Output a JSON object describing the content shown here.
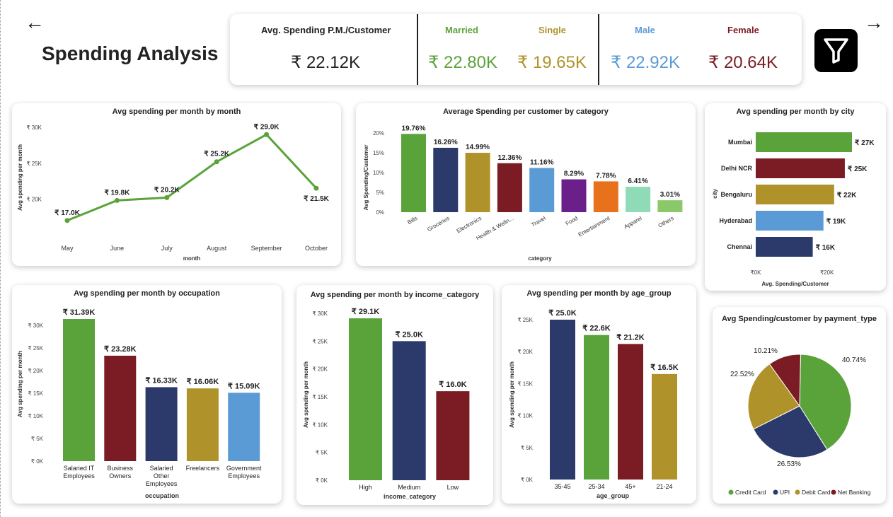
{
  "header": {
    "title": "Spending Analysis",
    "back_icon": "left-arrow-icon",
    "next_icon": "right-arrow-icon",
    "filter_icon": "filter-funnel-icon"
  },
  "kpis": {
    "avg_label": "Avg. Spending P.M./Customer",
    "avg_value": "₹ 22.12K",
    "married_label": "Married",
    "married_value": "₹ 22.80K",
    "single_label": "Single",
    "single_value": "₹ 19.65K",
    "male_label": "Male",
    "male_value": "₹ 22.92K",
    "female_label": "Female",
    "female_value": "₹ 20.64K",
    "colors": {
      "married": "#5aa33a",
      "single": "#b0922a",
      "male": "#5b9bd5",
      "female": "#7b1c24"
    }
  },
  "chart_data": [
    {
      "id": "month",
      "type": "line",
      "title": "Avg spending per month by month",
      "xlabel": "month",
      "ylabel": "Avg spending per month",
      "categories": [
        "May",
        "June",
        "July",
        "August",
        "September",
        "October"
      ],
      "values": [
        17.0,
        19.8,
        20.2,
        25.2,
        29.0,
        21.5
      ],
      "labels": [
        "₹ 17.0K",
        "₹ 19.8K",
        "₹ 20.2K",
        "₹ 25.2K",
        "₹ 29.0K",
        "₹ 21.5K"
      ],
      "yticks": [
        "₹ 20K",
        "₹ 25K",
        "₹ 30K"
      ],
      "ylim": [
        15,
        31
      ],
      "color": "#5aa33a"
    },
    {
      "id": "category",
      "type": "bar",
      "title": "Average Spending per customer by category",
      "xlabel": "category",
      "ylabel": "Avg Spending/Customer",
      "categories": [
        "Bills",
        "Groceries",
        "Electronics",
        "Health & Welln...",
        "Travel",
        "Food",
        "Entertainment",
        "Apparel",
        "Others"
      ],
      "values": [
        19.76,
        16.26,
        14.99,
        12.36,
        11.16,
        8.29,
        7.78,
        6.41,
        3.01
      ],
      "labels": [
        "19.76%",
        "16.26%",
        "14.99%",
        "12.36%",
        "11.16%",
        "8.29%",
        "7.78%",
        "6.41%",
        "3.01%"
      ],
      "yticks": [
        "0%",
        "5%",
        "10%",
        "15%",
        "20%"
      ],
      "ylim": [
        0,
        20
      ],
      "colors": [
        "#5aa33a",
        "#2b3a6b",
        "#b0922a",
        "#7b1c24",
        "#5b9bd5",
        "#6a1f8a",
        "#e8721c",
        "#8fdbb8",
        "#8bc86a"
      ]
    },
    {
      "id": "city",
      "type": "bar",
      "orientation": "horizontal",
      "title": "Avg spending per month by city",
      "xlabel": "Avg. Spending/Customer",
      "ylabel": "city",
      "categories": [
        "Mumbai",
        "Delhi NCR",
        "Bengaluru",
        "Hyderabad",
        "Chennai"
      ],
      "values": [
        27,
        25,
        22,
        19,
        16
      ],
      "labels": [
        "₹ 27K",
        "₹ 25K",
        "₹ 22K",
        "₹ 19K",
        "₹ 16K"
      ],
      "xticks": [
        "₹0K",
        "₹20K"
      ],
      "xlim": [
        0,
        27
      ],
      "colors": [
        "#5aa33a",
        "#7b1c24",
        "#b0922a",
        "#5b9bd5",
        "#2b3a6b"
      ]
    },
    {
      "id": "occupation",
      "type": "bar",
      "title": "Avg spending per month by occupation",
      "xlabel": "occupation",
      "ylabel": "Avg spending per month",
      "categories": [
        [
          "Salaried IT",
          "Employees"
        ],
        [
          "Business",
          "Owners"
        ],
        [
          "Salaried",
          "Other",
          "Employees"
        ],
        [
          "Freelancers"
        ],
        [
          "Government",
          "Employees"
        ]
      ],
      "values": [
        31.39,
        23.28,
        16.33,
        16.06,
        15.09
      ],
      "labels": [
        "₹ 31.39K",
        "₹ 23.28K",
        "₹ 16.33K",
        "₹ 16.06K",
        "₹ 15.09K"
      ],
      "yticks": [
        "₹ 0K",
        "₹ 5K",
        "₹ 10K",
        "₹ 15K",
        "₹ 20K",
        "₹ 25K",
        "₹ 30K"
      ],
      "ylim": [
        0,
        31.39
      ],
      "colors": [
        "#5aa33a",
        "#7b1c24",
        "#2b3a6b",
        "#b0922a",
        "#5b9bd5"
      ]
    },
    {
      "id": "income",
      "type": "bar",
      "title": "Avg spending per month by income_category",
      "xlabel": "income_category",
      "ylabel": "Avg spending per month",
      "categories": [
        "High",
        "Medium",
        "Low"
      ],
      "values": [
        29.1,
        25.0,
        16.0
      ],
      "labels": [
        "₹ 29.1K",
        "₹ 25.0K",
        "₹ 16.0K"
      ],
      "yticks": [
        "₹ 0K",
        "₹ 5K",
        "₹ 10K",
        "₹ 15K",
        "₹ 20K",
        "₹ 25K",
        "₹ 30K"
      ],
      "ylim": [
        0,
        30
      ],
      "colors": [
        "#5aa33a",
        "#2b3a6b",
        "#7b1c24"
      ]
    },
    {
      "id": "age",
      "type": "bar",
      "title": "Avg spending per month by age_group",
      "xlabel": "age_group",
      "ylabel": "Avg spending per month",
      "categories": [
        "35-45",
        "25-34",
        "45+",
        "21-24"
      ],
      "values": [
        25.0,
        22.6,
        21.2,
        16.5
      ],
      "labels": [
        "₹ 25.0K",
        "₹ 22.6K",
        "₹ 21.2K",
        "₹ 16.5K"
      ],
      "yticks": [
        "₹ 0K",
        "₹ 5K",
        "₹ 10K",
        "₹ 15K",
        "₹ 20K",
        "₹ 25K"
      ],
      "ylim": [
        0,
        25
      ],
      "colors": [
        "#2b3a6b",
        "#5aa33a",
        "#7b1c24",
        "#b0922a"
      ]
    },
    {
      "id": "payment",
      "type": "pie",
      "title": "Avg Spending/customer by payment_type",
      "categories": [
        "Credit Card",
        "UPI",
        "Debit Card",
        "Net Banking"
      ],
      "values": [
        40.74,
        26.53,
        22.52,
        10.21
      ],
      "labels": [
        "40.74%",
        "26.53%",
        "22.52%",
        "10.21%"
      ],
      "colors": [
        "#5aa33a",
        "#2b3a6b",
        "#b0922a",
        "#7b1c24"
      ]
    }
  ]
}
